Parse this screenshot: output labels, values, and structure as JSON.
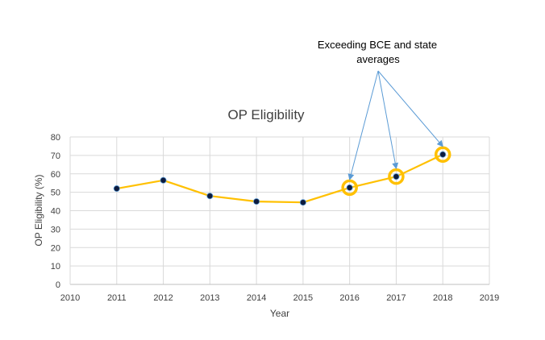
{
  "chart_data": {
    "type": "line",
    "title": "OP Eligibility",
    "xlabel": "Year",
    "ylabel": "OP Eligibility (%)",
    "xlim": [
      2010,
      2019
    ],
    "ylim": [
      0,
      80
    ],
    "x_ticks": [
      "2010",
      "2011",
      "2012",
      "2013",
      "2014",
      "2015",
      "2016",
      "2017",
      "2018",
      "2019"
    ],
    "y_ticks": [
      "0",
      "10",
      "20",
      "30",
      "40",
      "50",
      "60",
      "70",
      "80"
    ],
    "grid": true,
    "legend": "none",
    "series": [
      {
        "x": [
          2011,
          2012,
          2013,
          2014,
          2015,
          2016,
          2017,
          2018
        ],
        "values": [
          52,
          56.5,
          48,
          45,
          44.5,
          52.5,
          58.5,
          70.5
        ],
        "line_color": "#FFC000",
        "marker_color": "#0D1B3E"
      }
    ],
    "highlighted_points": [
      2016,
      2017,
      2018
    ],
    "highlight_color": "#FFC000",
    "annotation": {
      "line1": "Exceeding BCE and state",
      "line2": "averages",
      "arrow_color": "#5B9BD5",
      "targets": [
        2016,
        2017,
        2018
      ]
    }
  }
}
